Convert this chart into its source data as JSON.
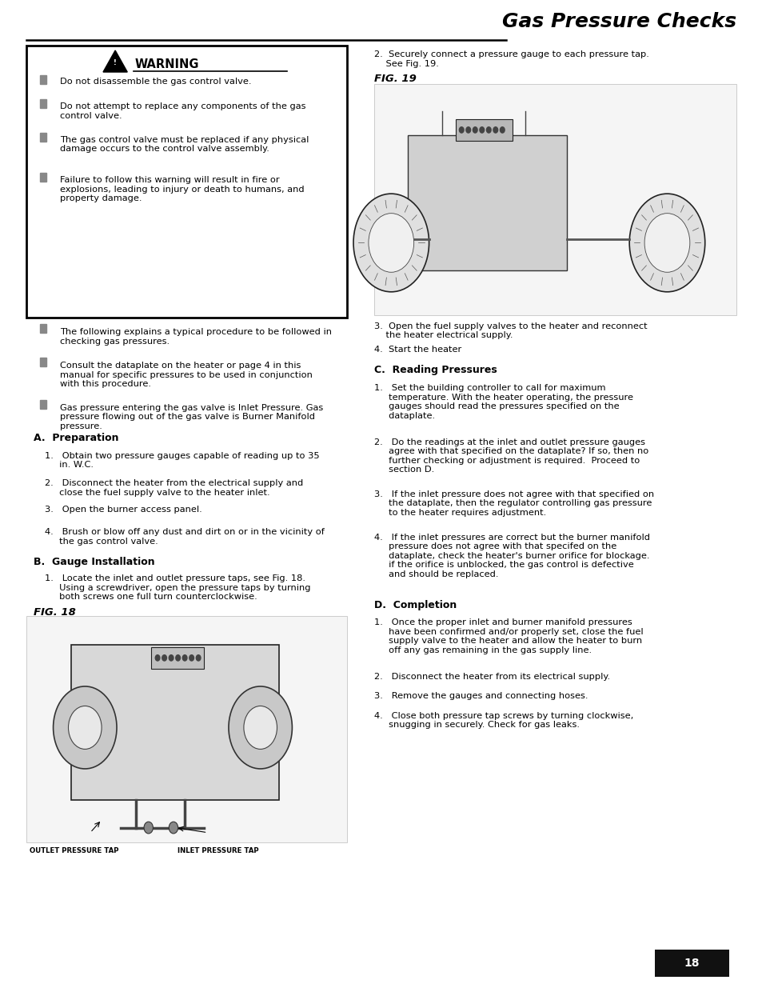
{
  "page_title": "Gas Pressure Checks",
  "warning_text_list": [
    "Do not disassemble the gas control valve.",
    "Do not attempt to replace any components of the gas\ncontrol valve.",
    "The gas control valve must be replaced if any physical\ndamage occurs to the control valve assembly.",
    "Failure to follow this warning will result in fire or\nexplosions, leading to injury or death to humans, and\nproperty damage."
  ],
  "bullet_texts": [
    "The following explains a typical procedure to be followed in\nchecking gas pressures.",
    "Consult the dataplate on the heater or page 4 in this\nmanual for specific pressures to be used in conjunction\nwith this procedure.",
    "Gas pressure entering the gas valve is Inlet Pressure. Gas\npressure flowing out of the gas valve is Burner Manifold\npressure."
  ],
  "section_a_title": "A.  Preparation",
  "section_a_items": [
    "1.   Obtain two pressure gauges capable of reading up to 35\n     in. W.C.",
    "2.   Disconnect the heater from the electrical supply and\n     close the fuel supply valve to the heater inlet.",
    "3.   Open the burner access panel.",
    "4.   Brush or blow off any dust and dirt on or in the vicinity of\n     the gas control valve."
  ],
  "section_b_title": "B.  Gauge Installation",
  "section_b_items": [
    "1.   Locate the inlet and outlet pressure taps, see Fig. 18.\n     Using a screwdriver, open the pressure taps by turning\n     both screws one full turn counterclockwise."
  ],
  "fig18_label": "FIG. 18",
  "fig18_caption_left": "OUTLET PRESSURE TAP",
  "fig18_caption_right": "INLET PRESSURE TAP",
  "right_step2": "2.  Securely connect a pressure gauge to each pressure tap.\n    See Fig. 19.",
  "fig19_label": "FIG. 19",
  "right_step3": "3.  Open the fuel supply valves to the heater and reconnect\n    the heater electrical supply.",
  "right_step4": "4.  Start the heater",
  "section_c_title": "C.  Reading Pressures",
  "section_c_items": [
    "1.   Set the building controller to call for maximum\n     temperature. With the heater operating, the pressure\n     gauges should read the pressures specified on the\n     dataplate.",
    "2.   Do the readings at the inlet and outlet pressure gauges\n     agree with that specified on the dataplate? If so, then no\n     further checking or adjustment is required.  Proceed to\n     section D.",
    "3.   If the inlet pressure does not agree with that specified on\n     the dataplate, then the regulator controlling gas pressure\n     to the heater requires adjustment.",
    "4.   If the inlet pressures are correct but the burner manifold\n     pressure does not agree with that specifed on the\n     dataplate, check the heater's burner orifice for blockage.\n     if the orifice is unblocked, the gas control is defective\n     and should be replaced."
  ],
  "section_d_title": "D.  Completion",
  "section_d_items": [
    "1.   Once the proper inlet and burner manifold pressures\n     have been confirmed and/or properly set, close the fuel\n     supply valve to the heater and allow the heater to burn\n     off any gas remaining in the gas supply line.",
    "2.   Disconnect the heater from its electrical supply.",
    "3.   Remove the gauges and connecting hoses.",
    "4.   Close both pressure tap screws by turning clockwise,\n     snugging in securely. Check for gas leaks."
  ],
  "page_number": "18",
  "background_color": "#ffffff",
  "text_color": "#000000",
  "body_font_size": 8.2,
  "section_font_size": 9.0,
  "fig_label_font_size": 9.5,
  "title_font_size": 18
}
